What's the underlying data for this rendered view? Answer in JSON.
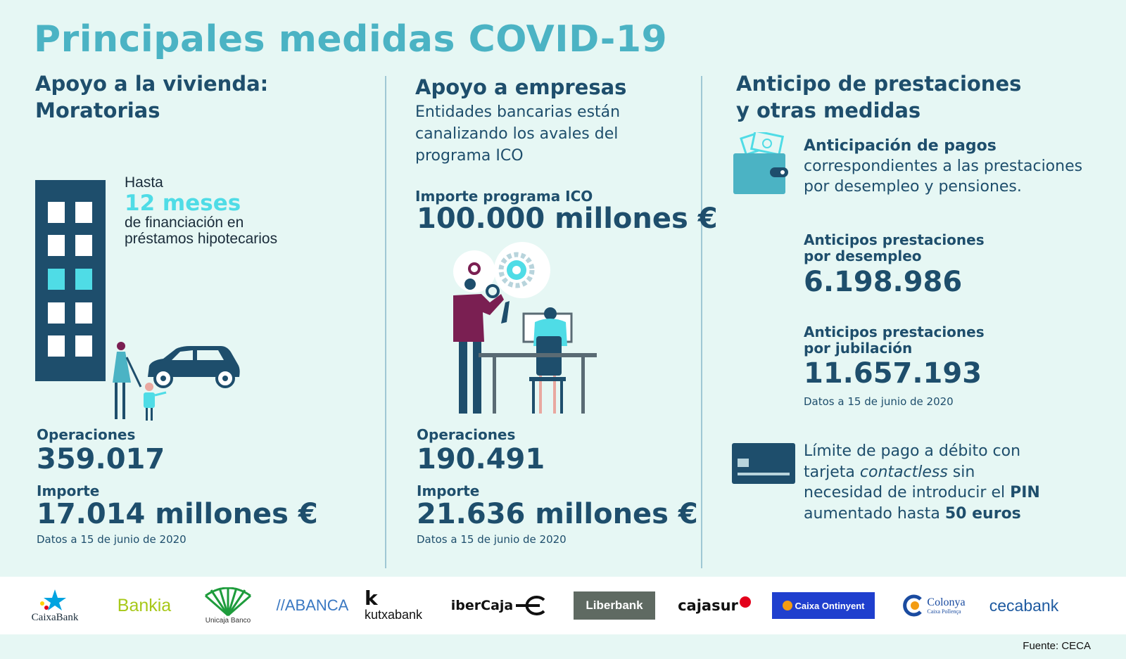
{
  "title": "Principales medidas COVID-19",
  "colors": {
    "background": "#e6f7f4",
    "accent": "#4bb3c4",
    "dark": "#1e4e6c",
    "highlight": "#4fdce6"
  },
  "vivienda": {
    "heading_line1": "Apoyo a la vivienda:",
    "heading_line2": "Moratorias",
    "hasta": "Hasta",
    "meses": "12 meses",
    "desc_line1": "de financiación en",
    "desc_line2": "préstamos hipotecarios",
    "operaciones_label": "Operaciones",
    "operaciones_value": "359.017",
    "importe_label": "Importe",
    "importe_value": "17.014 millones €",
    "date": "Datos a 15 de junio de 2020"
  },
  "empresas": {
    "heading": "Apoyo a empresas",
    "desc_line1": "Entidades bancarias están",
    "desc_line2": "canalizando los avales del",
    "desc_line3": "programa ICO",
    "ico_label": "Importe programa ICO",
    "ico_value": "100.000 millones €",
    "operaciones_label": "Operaciones",
    "operaciones_value": "190.491",
    "importe_label": "Importe",
    "importe_value": "21.636 millones €",
    "date": "Datos a 15 de junio de 2020"
  },
  "anticipo": {
    "heading_line1": "Anticipo de prestaciones",
    "heading_line2": "y otras medidas",
    "pagos_bold": "Anticipación de pagos",
    "pagos_line2": "correspondientes a las prestaciones",
    "pagos_line3": "por  desempleo y pensiones.",
    "desempleo_label_line1": "Anticipos prestaciones",
    "desempleo_label_line2": "por desempleo",
    "desempleo_value": "6.198.986",
    "jubilacion_label_line1": "Anticipos prestaciones",
    "jubilacion_label_line2": "por jubilación",
    "jubilacion_value": "11.657.193",
    "date": "Datos a 15 de junio de 2020",
    "limite_line1": "Límite de pago a débito  con",
    "limite_line2a": "tarjeta ",
    "limite_line2b": "contactless",
    "limite_line2c": "  sin",
    "limite_line3a": "necesidad de  introducir el ",
    "limite_line3b": "PIN",
    "limite_line4a": "aumentado hasta ",
    "limite_line4b": "50 euros"
  },
  "logos": {
    "caixabank": "CaixaBank",
    "bankia": "Bankia",
    "unicaja": "Unicaja Banco",
    "abanca": "//ABANCA",
    "kutxabank": "kutxabank",
    "ibercaja": "iberCaja",
    "liberbank": "Liberbank",
    "cajasur": "cajasur",
    "caixa_ontinyent": "Caixa Ontinyent",
    "colonya": "Colonya",
    "colonya_sub": "Caixa Pollença",
    "cecabank": "cecabank"
  },
  "footer": "Fuente: CECA",
  "icons": [
    "building-icon",
    "family-icon",
    "car-icon",
    "gears-icon",
    "office-workers-icon",
    "wallet-icon",
    "card-icon"
  ]
}
